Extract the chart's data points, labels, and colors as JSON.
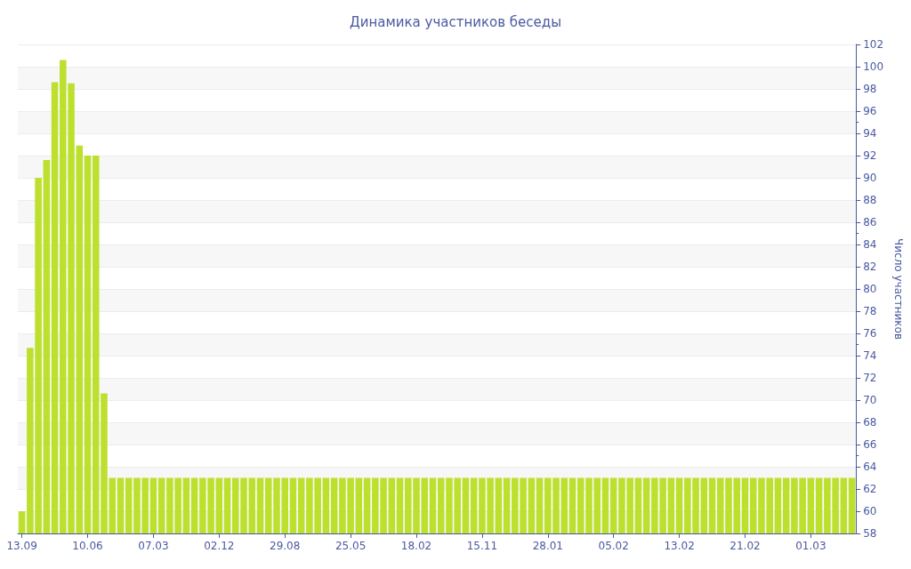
{
  "chart_data": {
    "type": "bar",
    "title": "Динамика участников беседы",
    "ylabel": "Число участников",
    "categories": [
      "13.09",
      null,
      null,
      null,
      null,
      null,
      null,
      null,
      "10.06",
      null,
      null,
      null,
      null,
      null,
      null,
      null,
      "07.03",
      null,
      null,
      null,
      null,
      null,
      null,
      null,
      "02.12",
      null,
      null,
      null,
      null,
      null,
      null,
      null,
      "29.08",
      null,
      null,
      null,
      null,
      null,
      null,
      null,
      "25.05",
      null,
      null,
      null,
      null,
      null,
      null,
      null,
      "18.02",
      null,
      null,
      null,
      null,
      null,
      null,
      null,
      "15.11",
      null,
      null,
      null,
      null,
      null,
      null,
      null,
      "28.01",
      null,
      null,
      null,
      null,
      null,
      null,
      null,
      "05.02",
      null,
      null,
      null,
      null,
      null,
      null,
      null,
      "13.02",
      null,
      null,
      null,
      null,
      null,
      null,
      null,
      "21.02",
      null,
      null,
      null,
      null,
      null,
      null,
      null,
      "01.03",
      null,
      null,
      null,
      null,
      null
    ],
    "values": [
      60,
      74.7,
      90,
      91.6,
      98.6,
      100.6,
      98.5,
      92.9,
      92,
      92,
      70.6,
      63,
      63,
      63,
      63,
      63,
      63,
      63,
      63,
      63,
      63,
      63,
      63,
      63,
      63,
      63,
      63,
      63,
      63,
      63,
      63,
      63,
      63,
      63,
      63,
      63,
      63,
      63,
      63,
      63,
      63,
      63,
      63,
      63,
      63,
      63,
      63,
      63,
      63,
      63,
      63,
      63,
      63,
      63,
      63,
      63,
      63,
      63,
      63,
      63,
      63,
      63,
      63,
      63,
      63,
      63,
      63,
      63,
      63,
      63,
      63,
      63,
      63,
      63,
      63,
      63,
      63,
      63,
      63,
      63,
      63,
      63,
      63,
      63,
      63,
      63,
      63,
      63,
      63,
      63,
      63,
      63,
      63,
      63,
      63,
      63,
      63,
      63,
      63,
      63,
      63,
      63
    ],
    "color": "#bde02e",
    "ylim": [
      58,
      102
    ],
    "yticks": [
      58,
      60,
      62,
      64,
      66,
      68,
      70,
      72,
      74,
      76,
      78,
      80,
      82,
      84,
      86,
      88,
      90,
      92,
      94,
      96,
      98,
      100,
      102
    ],
    "grid": "y"
  }
}
